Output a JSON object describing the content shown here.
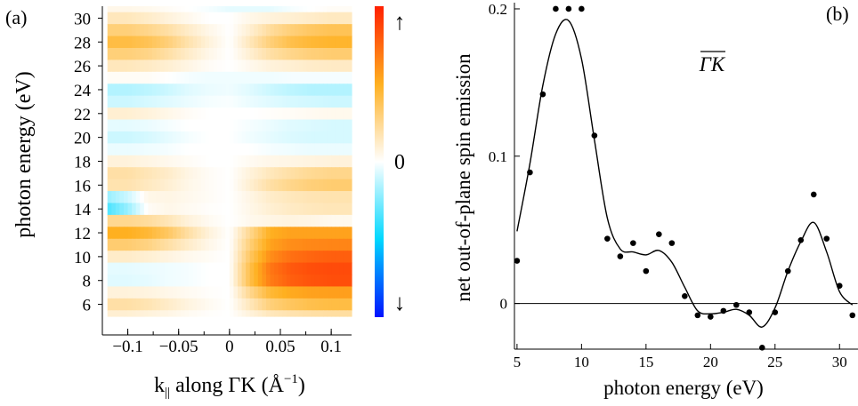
{
  "chart_data": [
    {
      "type": "heatmap",
      "panel_label": "(a)",
      "ylabel": "photon energy (eV)",
      "xlabel": "k|| along ΓK (Å−1)",
      "xlabel_parts": {
        "k": "k",
        "sub": "||",
        "mid": " along ΓK (Å",
        "sup": "−1",
        "end": ")"
      },
      "xlim": [
        -0.125,
        0.12
      ],
      "ylim": [
        5,
        31
      ],
      "xticks": [
        -0.1,
        -0.05,
        0,
        0.05,
        0.1
      ],
      "xtick_labels": [
        "−0.1",
        "−0.05",
        "0",
        "0.05",
        "0.1"
      ],
      "yticks": [
        6,
        8,
        10,
        12,
        14,
        16,
        18,
        20,
        22,
        24,
        26,
        28,
        30
      ],
      "ytick_labels": [
        "6",
        "8",
        "10",
        "12",
        "14",
        "16",
        "18",
        "20",
        "22",
        "24",
        "26",
        "28",
        "30"
      ],
      "k_columns": [
        -0.12,
        -0.1,
        -0.08,
        -0.06,
        -0.04,
        -0.02,
        0,
        0.02,
        0.04,
        0.06,
        0.08,
        0.1,
        0.12
      ],
      "rows": [
        {
          "e": 31,
          "v": [
            0.05,
            0.05,
            0.04,
            0.02,
            0.0,
            -0.02,
            -0.05,
            -0.05,
            -0.05,
            -0.02,
            0.0,
            0.02,
            0.02
          ]
        },
        {
          "e": 30,
          "v": [
            0.15,
            0.15,
            0.12,
            0.08,
            0.04,
            0.0,
            0.0,
            0.05,
            0.08,
            0.1,
            0.12,
            0.14,
            0.14
          ]
        },
        {
          "e": 29,
          "v": [
            0.3,
            0.3,
            0.26,
            0.2,
            0.12,
            0.05,
            0.0,
            0.1,
            0.22,
            0.3,
            0.35,
            0.38,
            0.38
          ]
        },
        {
          "e": 28,
          "v": [
            0.42,
            0.42,
            0.38,
            0.3,
            0.18,
            0.08,
            0.0,
            0.15,
            0.3,
            0.4,
            0.45,
            0.47,
            0.47
          ]
        },
        {
          "e": 27,
          "v": [
            0.3,
            0.3,
            0.27,
            0.2,
            0.12,
            0.05,
            0.0,
            0.1,
            0.2,
            0.26,
            0.3,
            0.32,
            0.32
          ]
        },
        {
          "e": 26,
          "v": [
            0.15,
            0.15,
            0.13,
            0.1,
            0.06,
            0.02,
            0.0,
            0.04,
            0.08,
            0.1,
            0.12,
            0.13,
            0.13
          ]
        },
        {
          "e": 25,
          "v": [
            0.02,
            0.02,
            0.02,
            0.0,
            -0.02,
            -0.03,
            -0.03,
            -0.03,
            -0.03,
            -0.02,
            -0.02,
            -0.02,
            -0.02
          ]
        },
        {
          "e": 24,
          "v": [
            -0.15,
            -0.15,
            -0.13,
            -0.1,
            -0.06,
            -0.04,
            -0.03,
            -0.06,
            -0.1,
            -0.13,
            -0.15,
            -0.15,
            -0.15
          ]
        },
        {
          "e": 23,
          "v": [
            -0.1,
            -0.1,
            -0.08,
            -0.06,
            -0.04,
            -0.02,
            -0.01,
            -0.04,
            -0.06,
            -0.08,
            -0.09,
            -0.1,
            -0.1
          ]
        },
        {
          "e": 22,
          "v": [
            0.1,
            0.1,
            0.08,
            0.05,
            0.02,
            0.0,
            0.0,
            0.0,
            0.01,
            0.02,
            0.03,
            0.04,
            0.04
          ]
        },
        {
          "e": 21,
          "v": [
            -0.05,
            -0.05,
            -0.04,
            -0.02,
            0.0,
            0.0,
            0.0,
            -0.02,
            -0.04,
            -0.06,
            -0.07,
            -0.08,
            -0.08
          ]
        },
        {
          "e": 20,
          "v": [
            -0.1,
            -0.1,
            -0.08,
            -0.05,
            -0.02,
            0.0,
            0.0,
            -0.03,
            -0.05,
            -0.07,
            -0.08,
            -0.08,
            -0.08
          ]
        },
        {
          "e": 19,
          "v": [
            -0.04,
            -0.04,
            -0.03,
            -0.02,
            0.0,
            0.0,
            0.0,
            0.0,
            -0.02,
            -0.03,
            -0.04,
            -0.04,
            -0.04
          ]
        },
        {
          "e": 18,
          "v": [
            0.08,
            0.08,
            0.06,
            0.04,
            0.02,
            0.0,
            0.0,
            0.03,
            0.05,
            0.06,
            0.07,
            0.08,
            0.08
          ]
        },
        {
          "e": 17,
          "v": [
            0.2,
            0.2,
            0.16,
            0.12,
            0.06,
            0.02,
            0.0,
            0.08,
            0.15,
            0.2,
            0.24,
            0.26,
            0.26
          ]
        },
        {
          "e": 16,
          "v": [
            0.18,
            0.18,
            0.14,
            0.1,
            0.05,
            0.02,
            0.0,
            0.1,
            0.2,
            0.26,
            0.3,
            0.32,
            0.32
          ]
        },
        {
          "e": 15,
          "v": [
            -0.2,
            -0.1,
            0.05,
            0.06,
            0.04,
            0.02,
            0.0,
            0.06,
            0.12,
            0.15,
            0.17,
            0.18,
            0.18
          ]
        },
        {
          "e": 14,
          "v": [
            -0.35,
            -0.2,
            0.02,
            0.05,
            0.03,
            0.01,
            0.0,
            0.05,
            0.1,
            0.13,
            0.15,
            0.16,
            0.16
          ]
        },
        {
          "e": 13,
          "v": [
            0.25,
            0.25,
            0.22,
            0.16,
            0.08,
            0.03,
            0.0,
            0.04,
            0.06,
            0.07,
            0.06,
            0.04,
            0.04
          ]
        },
        {
          "e": 12,
          "v": [
            0.5,
            0.5,
            0.45,
            0.35,
            0.2,
            0.08,
            0.0,
            0.25,
            0.5,
            0.55,
            0.55,
            0.55,
            0.55
          ]
        },
        {
          "e": 11,
          "v": [
            0.32,
            0.32,
            0.28,
            0.2,
            0.12,
            0.05,
            0.0,
            0.3,
            0.55,
            0.62,
            0.64,
            0.65,
            0.65
          ]
        },
        {
          "e": 10,
          "v": [
            0.12,
            0.12,
            0.1,
            0.07,
            0.04,
            0.02,
            0.0,
            0.35,
            0.62,
            0.72,
            0.76,
            0.78,
            0.78
          ]
        },
        {
          "e": 9,
          "v": [
            -0.05,
            -0.05,
            -0.04,
            -0.03,
            -0.02,
            0.0,
            0.0,
            0.4,
            0.7,
            0.8,
            0.84,
            0.85,
            0.85
          ]
        },
        {
          "e": 8,
          "v": [
            -0.06,
            -0.06,
            -0.05,
            -0.03,
            -0.02,
            0.0,
            0.0,
            0.4,
            0.68,
            0.78,
            0.82,
            0.84,
            0.84
          ]
        },
        {
          "e": 7,
          "v": [
            0.08,
            0.08,
            0.07,
            0.05,
            0.03,
            0.01,
            0.0,
            0.25,
            0.45,
            0.52,
            0.55,
            0.56,
            0.56
          ]
        },
        {
          "e": 6,
          "v": [
            0.2,
            0.2,
            0.17,
            0.12,
            0.07,
            0.03,
            0.0,
            0.15,
            0.3,
            0.36,
            0.4,
            0.42,
            0.42
          ]
        },
        {
          "e": 5,
          "v": [
            0.1,
            0.1,
            0.08,
            0.06,
            0.03,
            0.01,
            0.0,
            0.08,
            0.15,
            0.18,
            0.2,
            0.21,
            0.21
          ]
        }
      ],
      "colorbar": {
        "range": [
          -1,
          1
        ],
        "colors": [
          "#0011ff",
          "#00d8ff",
          "#ffffff",
          "#ffb020",
          "#ff2000"
        ],
        "top_symbol": "↑",
        "zero_label": "0",
        "bottom_symbol": "↓"
      }
    },
    {
      "type": "scatter",
      "panel_label": "(b)",
      "annotation": "ΓK",
      "ylabel": "net out-of-plane spin emission",
      "xlabel": "photon energy (eV)",
      "xlim": [
        4.8,
        31.5
      ],
      "ylim": [
        -0.031,
        0.203
      ],
      "xticks": [
        5,
        10,
        15,
        20,
        25,
        30
      ],
      "xtick_labels": [
        "5",
        "10",
        "15",
        "20",
        "25",
        "30"
      ],
      "yticks": [
        0,
        0.1,
        0.2
      ],
      "ytick_labels": [
        "0",
        "0.1",
        "0.2"
      ],
      "zero_line": true,
      "points": {
        "x": [
          5,
          6,
          7,
          8,
          9,
          10,
          11,
          12,
          13,
          14,
          15,
          16,
          17,
          18,
          19,
          20,
          21,
          22,
          23,
          24,
          25,
          26,
          27,
          28,
          29,
          30,
          31
        ],
        "y": [
          0.029,
          0.089,
          0.142,
          0.2,
          0.2,
          0.2,
          0.114,
          0.044,
          0.032,
          0.041,
          0.022,
          0.047,
          0.041,
          0.005,
          -0.008,
          -0.009,
          -0.005,
          -0.001,
          -0.006,
          -0.03,
          -0.006,
          0.022,
          0.043,
          0.074,
          0.044,
          0.012,
          -0.008
        ]
      },
      "fit_curve": {
        "x": [
          5,
          6,
          7,
          8,
          9,
          10,
          11,
          12,
          13,
          14,
          15,
          16,
          17,
          18,
          19,
          20,
          21,
          22,
          23,
          24,
          25,
          26,
          27,
          28,
          29,
          30,
          31
        ],
        "y": [
          0.049,
          0.095,
          0.148,
          0.183,
          0.192,
          0.166,
          0.111,
          0.058,
          0.037,
          0.035,
          0.033,
          0.036,
          0.028,
          0.011,
          -0.005,
          -0.007,
          -0.006,
          -0.004,
          -0.008,
          -0.016,
          -0.003,
          0.022,
          0.042,
          0.055,
          0.035,
          0.008,
          -0.001
        ]
      }
    }
  ]
}
